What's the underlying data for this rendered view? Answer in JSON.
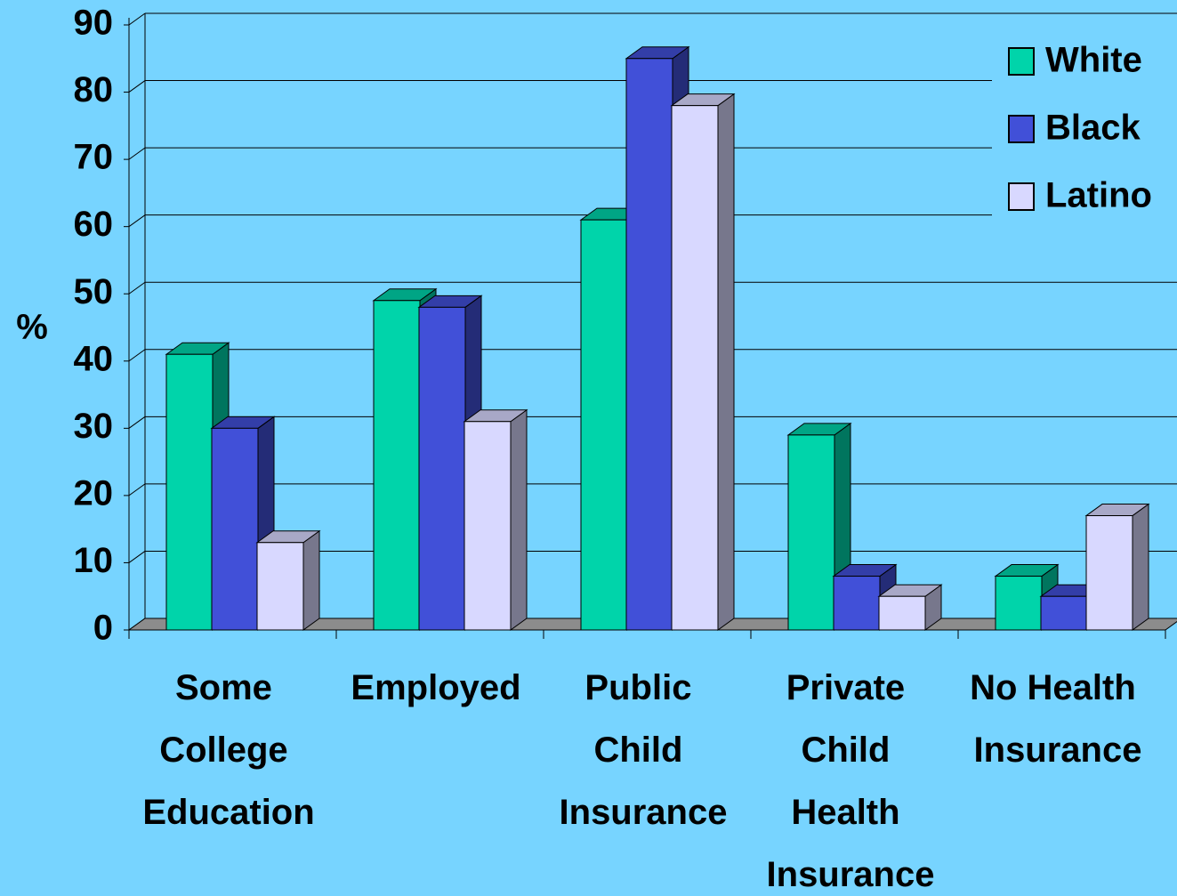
{
  "chart_data": {
    "type": "bar3d",
    "ylabel": "%",
    "categories": [
      "Some College Education",
      "Employed",
      "Public Child Insurance",
      "Private Child Health Insurance",
      "No Health Insurance"
    ],
    "series": [
      {
        "name": "White",
        "color": "#00d4aa",
        "values": [
          41,
          49,
          61,
          29,
          8
        ]
      },
      {
        "name": "Black",
        "color": "#4150d8",
        "values": [
          30,
          48,
          85,
          8,
          5
        ]
      },
      {
        "name": "Latino",
        "color": "#d8d8ff",
        "values": [
          13,
          31,
          78,
          5,
          17
        ]
      }
    ],
    "ylim": [
      0,
      90
    ],
    "yticks": [
      0,
      10,
      20,
      30,
      40,
      50,
      60,
      70,
      80,
      90
    ],
    "grid": true,
    "legend": "top-right"
  }
}
